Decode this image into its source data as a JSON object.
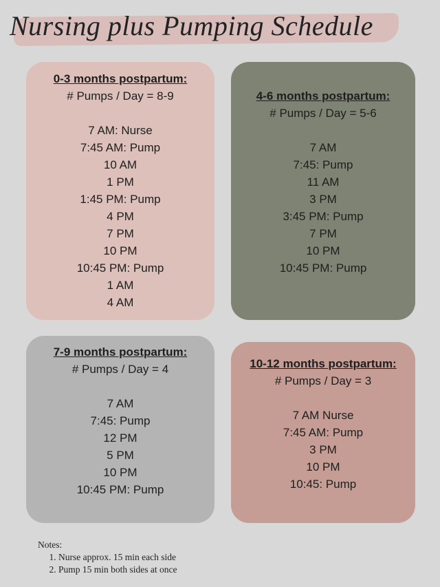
{
  "title": "Nursing plus Pumping Schedule",
  "cards": [
    {
      "heading": "0-3 months postpartum:",
      "subheading": "# Pumps / Day = 8-9",
      "times": [
        "7 AM: Nurse",
        "7:45 AM: Pump",
        "10 AM",
        "1 PM",
        "1:45 PM: Pump",
        "4 PM",
        "7 PM",
        "10 PM",
        "10:45 PM: Pump",
        "1 AM",
        "4 AM"
      ]
    },
    {
      "heading": "4-6 months postpartum:",
      "subheading": "# Pumps / Day = 5-6",
      "times": [
        "7 AM",
        "7:45: Pump",
        "11 AM",
        "3 PM",
        "3:45 PM: Pump",
        "7 PM",
        "10 PM",
        "10:45 PM: Pump"
      ]
    },
    {
      "heading": "7-9 months postpartum:",
      "subheading": "# Pumps / Day = 4",
      "times": [
        "7 AM",
        "7:45: Pump",
        "12 PM",
        "5 PM",
        "10 PM",
        "10:45 PM: Pump"
      ]
    },
    {
      "heading": "10-12 months postpartum:",
      "subheading": "# Pumps / Day = 3",
      "times": [
        "7 AM Nurse",
        "7:45 AM: Pump",
        "3 PM",
        "10 PM",
        "10:45: Pump"
      ]
    }
  ],
  "notes": {
    "label": "Notes:",
    "items": [
      "Nurse approx. 15 min each side",
      "Pump 15 min both sides at once"
    ]
  }
}
